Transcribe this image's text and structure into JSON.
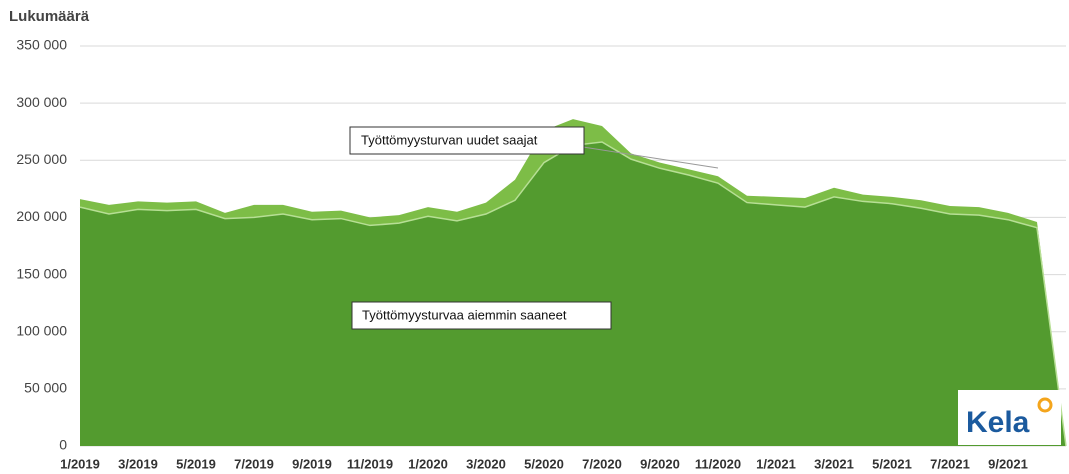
{
  "chart_data": {
    "type": "stacked_area",
    "y_axis_title": "Lukumäärä",
    "categories": [
      "1/2019",
      null,
      "3/2019",
      null,
      "5/2019",
      null,
      "7/2019",
      null,
      "9/2019",
      null,
      "11/2019",
      null,
      "1/2020",
      null,
      "3/2020",
      null,
      "5/2020",
      null,
      "7/2020",
      null,
      "9/2020",
      null,
      "11/2020",
      null,
      "1/2021",
      null,
      "3/2021",
      null,
      "5/2021",
      null,
      "7/2021",
      null,
      "9/2021",
      null,
      null
    ],
    "series": [
      {
        "name": "Työttömyysturvaa aiemmin saaneet",
        "color": "#539b2f",
        "values": [
          209000,
          203000,
          207000,
          206000,
          207000,
          199000,
          200000,
          203000,
          198000,
          199000,
          193000,
          195000,
          201000,
          197000,
          203000,
          215000,
          248000,
          263000,
          266000,
          251000,
          243000,
          237000,
          230000,
          213000,
          211000,
          209000,
          218000,
          214000,
          212000,
          208000,
          203000,
          202000,
          198000,
          191000,
          0
        ]
      },
      {
        "name": "Työttömyysturvan uudet saajat",
        "color": "#7dbd47",
        "values": [
          7000,
          8000,
          7000,
          7000,
          7000,
          5000,
          11000,
          8000,
          7000,
          7000,
          7000,
          7000,
          8000,
          8000,
          10000,
          18000,
          28000,
          23000,
          14000,
          5000,
          5000,
          5000,
          6000,
          6000,
          7000,
          8000,
          8000,
          6000,
          6000,
          7000,
          7000,
          7000,
          6000,
          5000,
          0
        ]
      }
    ],
    "ylim": [
      0,
      350000
    ],
    "yticks": [
      0,
      {
        "value": 50000,
        "label": "50 000"
      },
      {
        "value": 100000,
        "label": "100 000"
      },
      {
        "value": 150000,
        "label": "150 000"
      },
      {
        "value": 200000,
        "label": "200 000"
      },
      {
        "value": 250000,
        "label": "250 000"
      },
      {
        "value": 300000,
        "label": "300 000"
      },
      {
        "value": 350000,
        "label": "350 000"
      }
    ],
    "grid": true,
    "logo": "Kela"
  }
}
